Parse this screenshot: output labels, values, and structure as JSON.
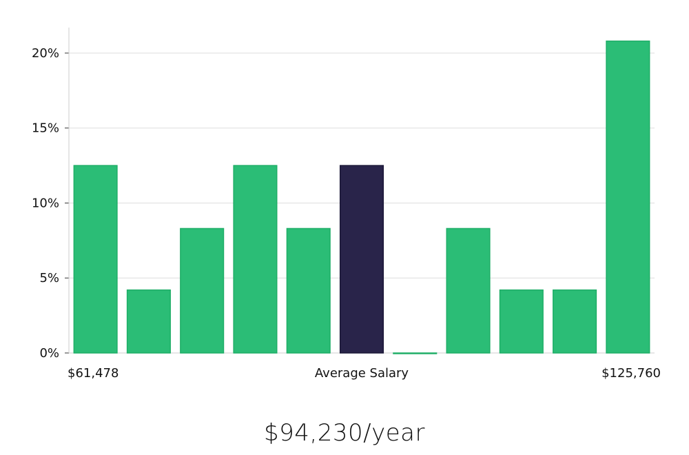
{
  "chart_data": {
    "type": "bar",
    "title": "",
    "xlabel": "Average Salary",
    "ylabel": "",
    "x_min_label": "$61,478",
    "x_max_label": "$125,760",
    "values": [
      12.5,
      4.2,
      8.3,
      12.5,
      8.3,
      12.5,
      0,
      8.3,
      4.2,
      4.2,
      20.8
    ],
    "highlight_index": 5,
    "ylim": [
      0,
      21.7
    ],
    "yticks": [
      0,
      5,
      10,
      15,
      20
    ],
    "ytick_labels": [
      "0%",
      "5%",
      "10%",
      "15%",
      "20%"
    ],
    "grid": true,
    "colors": {
      "bar": "#2bbd76",
      "bar_stroke": "#1fae67",
      "highlight": "#29244a",
      "grid": "#dddddd",
      "axis": "#cccccc"
    }
  },
  "footer": {
    "salary_text": "$94,230/year"
  }
}
